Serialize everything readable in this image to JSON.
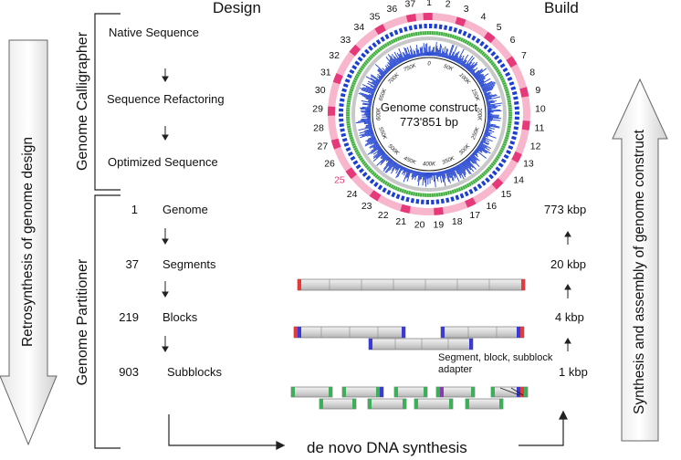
{
  "headers": {
    "design": "Design",
    "build": "Build"
  },
  "left_arrow_label": "Retrosynthesis of  genome design",
  "right_arrow_label": "Synthesis and assembly of genome construct",
  "calligrapher": {
    "title": "Genome Calligrapher",
    "steps": [
      "Native Sequence",
      "Sequence Refactoring",
      "Optimized Sequence"
    ]
  },
  "partitioner": {
    "title": "Genome Partitioner",
    "levels": [
      {
        "count": "1",
        "name": "Genome"
      },
      {
        "count": "37",
        "name": "Segments"
      },
      {
        "count": "219",
        "name": "Blocks"
      },
      {
        "count": "903",
        "name": "Subblocks"
      }
    ]
  },
  "circle": {
    "center_title": "Genome construct",
    "center_size": "773'851 bp",
    "segment_numbers": [
      "1",
      "2",
      "3",
      "4",
      "5",
      "6",
      "7",
      "8",
      "9",
      "10",
      "11",
      "12",
      "13",
      "14",
      "15",
      "16",
      "17",
      "18",
      "19",
      "20",
      "21",
      "22",
      "23",
      "24",
      "25",
      "26",
      "27",
      "28",
      "29",
      "30",
      "31",
      "32",
      "33",
      "34",
      "35",
      "36",
      "37"
    ],
    "highlighted_segment": "25",
    "ticks": [
      "0",
      "50K",
      "100K",
      "150K",
      "200K",
      "250K",
      "300K",
      "350K",
      "400K",
      "450K",
      "500K",
      "550K",
      "600K",
      "650K",
      "700K",
      "750K"
    ],
    "colors": {
      "segments_dark": "#e5397a",
      "segments_light": "#f7b6cc",
      "blue": "#1d3fcf",
      "green": "#3fae3f",
      "gray": "#c8c8c8",
      "highlight": "#e5397a"
    }
  },
  "build_sizes": [
    "773 kbp",
    "20 kbp",
    "4 kbp",
    "1 kbp"
  ],
  "adapter_label": [
    "Segment, block, subblock",
    "adapter"
  ],
  "synthesis_label": "de novo DNA synthesis"
}
